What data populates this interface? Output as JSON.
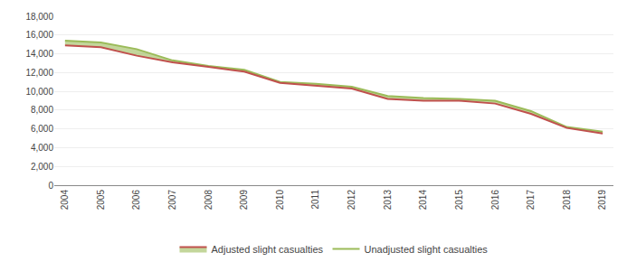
{
  "chart_data": {
    "type": "line",
    "x": [
      2004,
      2005,
      2006,
      2007,
      2008,
      2009,
      2010,
      2011,
      2012,
      2013,
      2014,
      2015,
      2016,
      2017,
      2018,
      2019
    ],
    "series": [
      {
        "name": "Unadjusted slight casualties",
        "color": "#9bbb59",
        "values": [
          15400,
          15200,
          14500,
          13300,
          12700,
          12300,
          11000,
          10800,
          10500,
          9500,
          9300,
          9200,
          9000,
          7900,
          6200,
          5700
        ]
      },
      {
        "name": "Adjusted slight casualties",
        "color": "#c0504d",
        "values": [
          14900,
          14700,
          13800,
          13100,
          12600,
          12100,
          10900,
          10600,
          10300,
          9200,
          9000,
          9000,
          8700,
          7600,
          6100,
          5500
        ]
      }
    ],
    "xlim": [
      2003.7,
      2019.3
    ],
    "xticks": [
      2004,
      2005,
      2006,
      2007,
      2008,
      2009,
      2010,
      2011,
      2012,
      2013,
      2014,
      2015,
      2016,
      2017,
      2018,
      2019
    ],
    "ylim": [
      0,
      18000
    ],
    "yticks": [
      0,
      {
        "value": 2000,
        "label": "2,000"
      },
      {
        "value": 4000,
        "label": "4,000"
      },
      {
        "value": 6000,
        "label": "6,000"
      },
      {
        "value": 8000,
        "label": "8,000"
      },
      {
        "value": 10000,
        "label": "10,000"
      },
      {
        "value": 12000,
        "label": "12,000"
      },
      {
        "value": 14000,
        "label": "14,000"
      },
      {
        "value": 16000,
        "label": "16,000"
      },
      {
        "value": 18000,
        "label": "18,000"
      }
    ],
    "grid": true,
    "legend": "bottom"
  }
}
